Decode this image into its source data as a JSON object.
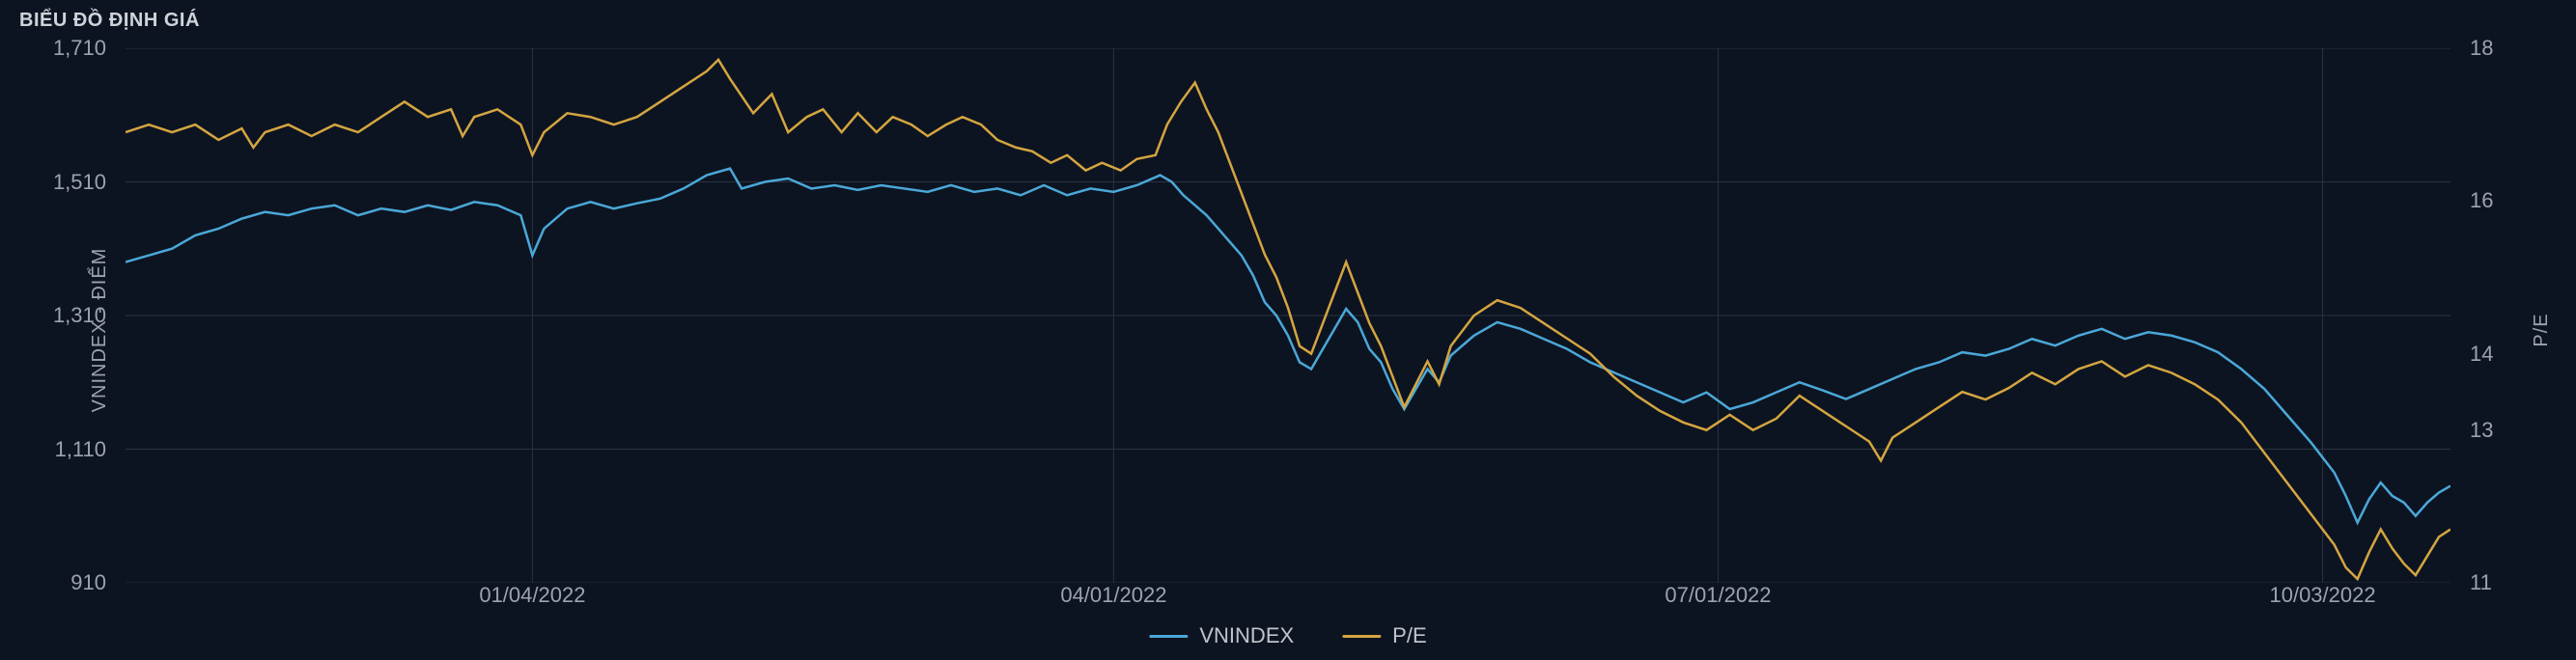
{
  "title": "BIỂU ĐỒ ĐỊNH GIÁ",
  "chart": {
    "type": "line",
    "background_color": "#0d1421",
    "grid_color": "#2a3240",
    "text_color": "#9ca3af",
    "title_color": "#d0d4da",
    "y_left": {
      "label": "VNINDEX - ĐIỂM",
      "min": 910,
      "max": 1710,
      "ticks": [
        910,
        1110,
        1310,
        1510,
        1710
      ],
      "label_fontsize": 20,
      "tick_fontsize": 22
    },
    "y_right": {
      "label": "P/E",
      "min": 11,
      "max": 18,
      "ticks": [
        11,
        13,
        14,
        16,
        18
      ],
      "label_fontsize": 20,
      "tick_fontsize": 22
    },
    "x": {
      "ticks": [
        {
          "pos": 0.175,
          "label": "01/04/2022"
        },
        {
          "pos": 0.425,
          "label": "04/01/2022"
        },
        {
          "pos": 0.685,
          "label": "07/01/2022"
        },
        {
          "pos": 0.945,
          "label": "10/03/2022"
        }
      ],
      "tick_fontsize": 22
    },
    "series": [
      {
        "name": "VNINDEX",
        "color": "#4aa8d8",
        "axis": "left",
        "line_width": 2.5,
        "data": [
          [
            0.0,
            1390
          ],
          [
            0.01,
            1400
          ],
          [
            0.02,
            1410
          ],
          [
            0.03,
            1430
          ],
          [
            0.04,
            1440
          ],
          [
            0.05,
            1455
          ],
          [
            0.06,
            1465
          ],
          [
            0.07,
            1460
          ],
          [
            0.08,
            1470
          ],
          [
            0.09,
            1475
          ],
          [
            0.1,
            1460
          ],
          [
            0.11,
            1470
          ],
          [
            0.12,
            1465
          ],
          [
            0.13,
            1475
          ],
          [
            0.14,
            1468
          ],
          [
            0.15,
            1480
          ],
          [
            0.16,
            1475
          ],
          [
            0.17,
            1460
          ],
          [
            0.175,
            1400
          ],
          [
            0.18,
            1440
          ],
          [
            0.19,
            1470
          ],
          [
            0.2,
            1480
          ],
          [
            0.21,
            1470
          ],
          [
            0.22,
            1478
          ],
          [
            0.23,
            1485
          ],
          [
            0.24,
            1500
          ],
          [
            0.25,
            1520
          ],
          [
            0.26,
            1530
          ],
          [
            0.265,
            1500
          ],
          [
            0.275,
            1510
          ],
          [
            0.285,
            1515
          ],
          [
            0.295,
            1500
          ],
          [
            0.305,
            1505
          ],
          [
            0.315,
            1498
          ],
          [
            0.325,
            1505
          ],
          [
            0.335,
            1500
          ],
          [
            0.345,
            1495
          ],
          [
            0.355,
            1505
          ],
          [
            0.365,
            1495
          ],
          [
            0.375,
            1500
          ],
          [
            0.385,
            1490
          ],
          [
            0.395,
            1505
          ],
          [
            0.405,
            1490
          ],
          [
            0.415,
            1500
          ],
          [
            0.425,
            1495
          ],
          [
            0.435,
            1505
          ],
          [
            0.445,
            1520
          ],
          [
            0.45,
            1510
          ],
          [
            0.455,
            1490
          ],
          [
            0.46,
            1475
          ],
          [
            0.465,
            1460
          ],
          [
            0.47,
            1440
          ],
          [
            0.475,
            1420
          ],
          [
            0.48,
            1400
          ],
          [
            0.485,
            1370
          ],
          [
            0.49,
            1330
          ],
          [
            0.495,
            1310
          ],
          [
            0.5,
            1280
          ],
          [
            0.505,
            1240
          ],
          [
            0.51,
            1230
          ],
          [
            0.515,
            1260
          ],
          [
            0.52,
            1290
          ],
          [
            0.525,
            1320
          ],
          [
            0.53,
            1300
          ],
          [
            0.535,
            1260
          ],
          [
            0.54,
            1240
          ],
          [
            0.545,
            1200
          ],
          [
            0.55,
            1170
          ],
          [
            0.555,
            1200
          ],
          [
            0.56,
            1230
          ],
          [
            0.565,
            1210
          ],
          [
            0.57,
            1250
          ],
          [
            0.58,
            1280
          ],
          [
            0.59,
            1300
          ],
          [
            0.6,
            1290
          ],
          [
            0.61,
            1275
          ],
          [
            0.62,
            1260
          ],
          [
            0.63,
            1240
          ],
          [
            0.64,
            1225
          ],
          [
            0.65,
            1210
          ],
          [
            0.66,
            1195
          ],
          [
            0.67,
            1180
          ],
          [
            0.68,
            1195
          ],
          [
            0.69,
            1170
          ],
          [
            0.7,
            1180
          ],
          [
            0.71,
            1195
          ],
          [
            0.72,
            1210
          ],
          [
            0.73,
            1198
          ],
          [
            0.74,
            1185
          ],
          [
            0.75,
            1200
          ],
          [
            0.76,
            1215
          ],
          [
            0.77,
            1230
          ],
          [
            0.78,
            1240
          ],
          [
            0.79,
            1255
          ],
          [
            0.8,
            1250
          ],
          [
            0.81,
            1260
          ],
          [
            0.82,
            1275
          ],
          [
            0.83,
            1265
          ],
          [
            0.84,
            1280
          ],
          [
            0.85,
            1290
          ],
          [
            0.86,
            1275
          ],
          [
            0.87,
            1285
          ],
          [
            0.88,
            1280
          ],
          [
            0.89,
            1270
          ],
          [
            0.9,
            1255
          ],
          [
            0.91,
            1230
          ],
          [
            0.92,
            1200
          ],
          [
            0.93,
            1160
          ],
          [
            0.94,
            1120
          ],
          [
            0.95,
            1075
          ],
          [
            0.955,
            1040
          ],
          [
            0.96,
            1000
          ],
          [
            0.965,
            1035
          ],
          [
            0.97,
            1060
          ],
          [
            0.975,
            1040
          ],
          [
            0.98,
            1030
          ],
          [
            0.985,
            1010
          ],
          [
            0.99,
            1030
          ],
          [
            0.995,
            1045
          ],
          [
            1.0,
            1055
          ]
        ]
      },
      {
        "name": "P/E",
        "color": "#d4a540",
        "axis": "right",
        "line_width": 2.5,
        "data": [
          [
            0.0,
            16.9
          ],
          [
            0.01,
            17.0
          ],
          [
            0.02,
            16.9
          ],
          [
            0.03,
            17.0
          ],
          [
            0.04,
            16.8
          ],
          [
            0.05,
            16.95
          ],
          [
            0.055,
            16.7
          ],
          [
            0.06,
            16.9
          ],
          [
            0.07,
            17.0
          ],
          [
            0.08,
            16.85
          ],
          [
            0.09,
            17.0
          ],
          [
            0.1,
            16.9
          ],
          [
            0.11,
            17.1
          ],
          [
            0.12,
            17.3
          ],
          [
            0.13,
            17.1
          ],
          [
            0.14,
            17.2
          ],
          [
            0.145,
            16.85
          ],
          [
            0.15,
            17.1
          ],
          [
            0.16,
            17.2
          ],
          [
            0.17,
            17.0
          ],
          [
            0.175,
            16.6
          ],
          [
            0.18,
            16.9
          ],
          [
            0.19,
            17.15
          ],
          [
            0.2,
            17.1
          ],
          [
            0.21,
            17.0
          ],
          [
            0.22,
            17.1
          ],
          [
            0.23,
            17.3
          ],
          [
            0.24,
            17.5
          ],
          [
            0.25,
            17.7
          ],
          [
            0.255,
            17.85
          ],
          [
            0.26,
            17.6
          ],
          [
            0.27,
            17.15
          ],
          [
            0.278,
            17.4
          ],
          [
            0.285,
            16.9
          ],
          [
            0.293,
            17.1
          ],
          [
            0.3,
            17.2
          ],
          [
            0.308,
            16.9
          ],
          [
            0.315,
            17.15
          ],
          [
            0.323,
            16.9
          ],
          [
            0.33,
            17.1
          ],
          [
            0.338,
            17.0
          ],
          [
            0.345,
            16.85
          ],
          [
            0.353,
            17.0
          ],
          [
            0.36,
            17.1
          ],
          [
            0.368,
            17.0
          ],
          [
            0.375,
            16.8
          ],
          [
            0.383,
            16.7
          ],
          [
            0.39,
            16.65
          ],
          [
            0.398,
            16.5
          ],
          [
            0.405,
            16.6
          ],
          [
            0.413,
            16.4
          ],
          [
            0.42,
            16.5
          ],
          [
            0.428,
            16.4
          ],
          [
            0.435,
            16.55
          ],
          [
            0.443,
            16.6
          ],
          [
            0.448,
            17.0
          ],
          [
            0.454,
            17.3
          ],
          [
            0.46,
            17.55
          ],
          [
            0.465,
            17.2
          ],
          [
            0.47,
            16.9
          ],
          [
            0.475,
            16.5
          ],
          [
            0.48,
            16.1
          ],
          [
            0.485,
            15.7
          ],
          [
            0.49,
            15.3
          ],
          [
            0.495,
            15.0
          ],
          [
            0.5,
            14.6
          ],
          [
            0.505,
            14.1
          ],
          [
            0.51,
            14.0
          ],
          [
            0.515,
            14.4
          ],
          [
            0.52,
            14.8
          ],
          [
            0.525,
            15.2
          ],
          [
            0.53,
            14.8
          ],
          [
            0.535,
            14.4
          ],
          [
            0.54,
            14.1
          ],
          [
            0.545,
            13.7
          ],
          [
            0.55,
            13.3
          ],
          [
            0.555,
            13.6
          ],
          [
            0.56,
            13.9
          ],
          [
            0.565,
            13.6
          ],
          [
            0.57,
            14.1
          ],
          [
            0.58,
            14.5
          ],
          [
            0.59,
            14.7
          ],
          [
            0.6,
            14.6
          ],
          [
            0.61,
            14.4
          ],
          [
            0.62,
            14.2
          ],
          [
            0.63,
            14.0
          ],
          [
            0.64,
            13.7
          ],
          [
            0.65,
            13.45
          ],
          [
            0.66,
            13.25
          ],
          [
            0.67,
            13.1
          ],
          [
            0.68,
            13.0
          ],
          [
            0.69,
            13.2
          ],
          [
            0.7,
            13.0
          ],
          [
            0.71,
            13.15
          ],
          [
            0.72,
            13.45
          ],
          [
            0.73,
            13.25
          ],
          [
            0.74,
            13.05
          ],
          [
            0.75,
            12.85
          ],
          [
            0.755,
            12.6
          ],
          [
            0.76,
            12.9
          ],
          [
            0.77,
            13.1
          ],
          [
            0.78,
            13.3
          ],
          [
            0.79,
            13.5
          ],
          [
            0.8,
            13.4
          ],
          [
            0.81,
            13.55
          ],
          [
            0.82,
            13.75
          ],
          [
            0.83,
            13.6
          ],
          [
            0.84,
            13.8
          ],
          [
            0.85,
            13.9
          ],
          [
            0.86,
            13.7
          ],
          [
            0.87,
            13.85
          ],
          [
            0.88,
            13.75
          ],
          [
            0.89,
            13.6
          ],
          [
            0.9,
            13.4
          ],
          [
            0.91,
            13.1
          ],
          [
            0.92,
            12.7
          ],
          [
            0.93,
            12.3
          ],
          [
            0.94,
            11.9
          ],
          [
            0.95,
            11.5
          ],
          [
            0.955,
            11.2
          ],
          [
            0.96,
            11.05
          ],
          [
            0.965,
            11.4
          ],
          [
            0.97,
            11.7
          ],
          [
            0.975,
            11.45
          ],
          [
            0.98,
            11.25
          ],
          [
            0.985,
            11.1
          ],
          [
            0.99,
            11.35
          ],
          [
            0.995,
            11.6
          ],
          [
            1.0,
            11.7
          ]
        ]
      }
    ],
    "legend": {
      "position": "bottom-center",
      "items": [
        {
          "label": "VNINDEX",
          "color": "#4aa8d8"
        },
        {
          "label": "P/E",
          "color": "#d4a540"
        }
      ],
      "fontsize": 22
    }
  }
}
